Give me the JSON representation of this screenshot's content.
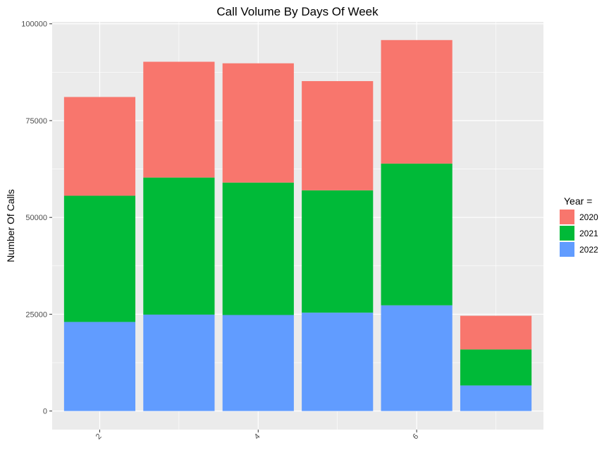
{
  "chart_data": {
    "type": "bar",
    "stacked": true,
    "title": "Call Volume By Days Of Week",
    "xlabel": "",
    "ylabel": "Number Of Calls",
    "x": [
      2,
      3,
      4,
      5,
      6,
      7
    ],
    "x_tick_labels": [
      "2",
      "4",
      "6"
    ],
    "x_tick_values": [
      2,
      4,
      6
    ],
    "xlim": [
      1.4,
      7.6
    ],
    "ylim": [
      -4800,
      100500
    ],
    "y_ticks": [
      0,
      25000,
      50000,
      75000,
      100000
    ],
    "y_tick_labels": [
      "0",
      "25000",
      "50000",
      "75000",
      "100000"
    ],
    "grid": true,
    "legend": {
      "title": "Year =",
      "position": "right"
    },
    "series": [
      {
        "name": "2022",
        "color": "#619CFF",
        "values": [
          23000,
          24900,
          24800,
          25400,
          27300,
          6600
        ]
      },
      {
        "name": "2021",
        "color": "#00BA38",
        "values": [
          32600,
          35400,
          34200,
          31600,
          36600,
          9300
        ]
      },
      {
        "name": "2020",
        "color": "#F8766D",
        "values": [
          25500,
          29900,
          30800,
          28200,
          31900,
          8700
        ]
      }
    ],
    "legend_order": [
      "2020",
      "2021",
      "2022"
    ]
  }
}
